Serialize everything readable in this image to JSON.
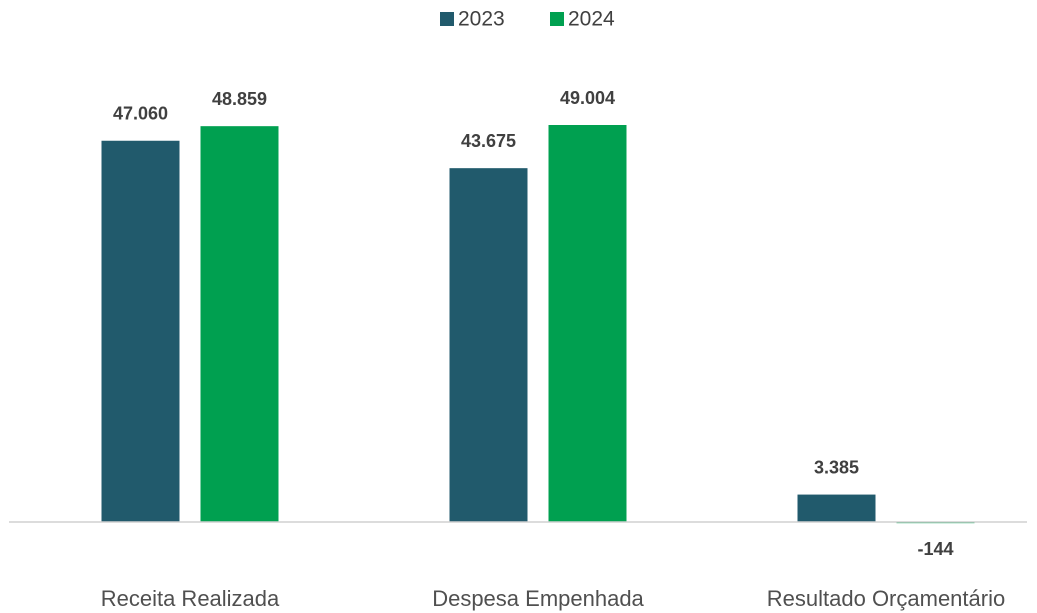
{
  "chart_data": {
    "type": "bar",
    "categories": [
      "Receita Realizada",
      "Despesa Empenhada",
      "Resultado Orçamentário"
    ],
    "series": [
      {
        "name": "2023",
        "color": "#215a6c",
        "values": [
          47060,
          43675,
          3385
        ],
        "value_labels": [
          "47.060",
          "43.675",
          "3.385"
        ]
      },
      {
        "name": "2024",
        "color": "#00a050",
        "values": [
          48859,
          49004,
          -144
        ],
        "value_labels": [
          "48.859",
          "49.004",
          "-144"
        ]
      }
    ],
    "legend": "top"
  }
}
